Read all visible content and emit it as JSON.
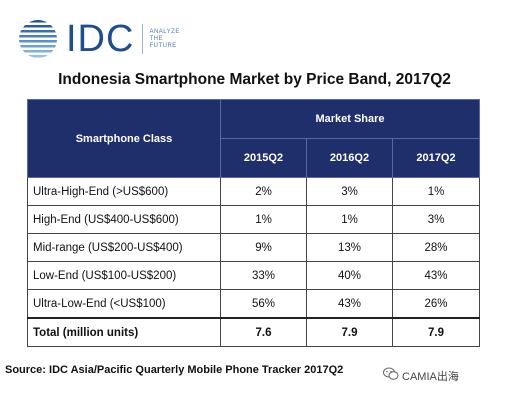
{
  "logo": {
    "brand": "IDC",
    "tagline": [
      "ANALYZE",
      "THE",
      "FUTURE"
    ]
  },
  "title": "Indonesia Smartphone Market by Price Band, 2017Q2",
  "table": {
    "header_class": "Smartphone Class",
    "header_group": "Market Share",
    "periods": [
      "2015Q2",
      "2016Q2",
      "2017Q2"
    ],
    "rows": [
      {
        "label": "Ultra-High-End (>US$600)",
        "values": [
          "2%",
          "3%",
          "1%"
        ]
      },
      {
        "label": "High-End (US$400-US$600)",
        "values": [
          "1%",
          "1%",
          "3%"
        ]
      },
      {
        "label": "Mid-range (US$200-US$400)",
        "values": [
          "9%",
          "13%",
          "28%"
        ]
      },
      {
        "label": "Low-End (US$100-US$200)",
        "values": [
          "33%",
          "40%",
          "43%"
        ]
      },
      {
        "label": "Ultra-Low-End (<US$100)",
        "values": [
          "56%",
          "43%",
          "26%"
        ]
      }
    ],
    "total": {
      "label": "Total (million units)",
      "values": [
        "7.6",
        "7.9",
        "7.9"
      ]
    }
  },
  "source": "Source: IDC Asia/Pacific Quarterly Mobile Phone Tracker 2017Q2",
  "watermark": "CAMIA出海",
  "colors": {
    "header_bg": "#1f2f6b",
    "brand_blue": "#1f4e8c"
  },
  "icons": {
    "logo": "idc-globe-icon",
    "watermark": "wechat-icon"
  }
}
